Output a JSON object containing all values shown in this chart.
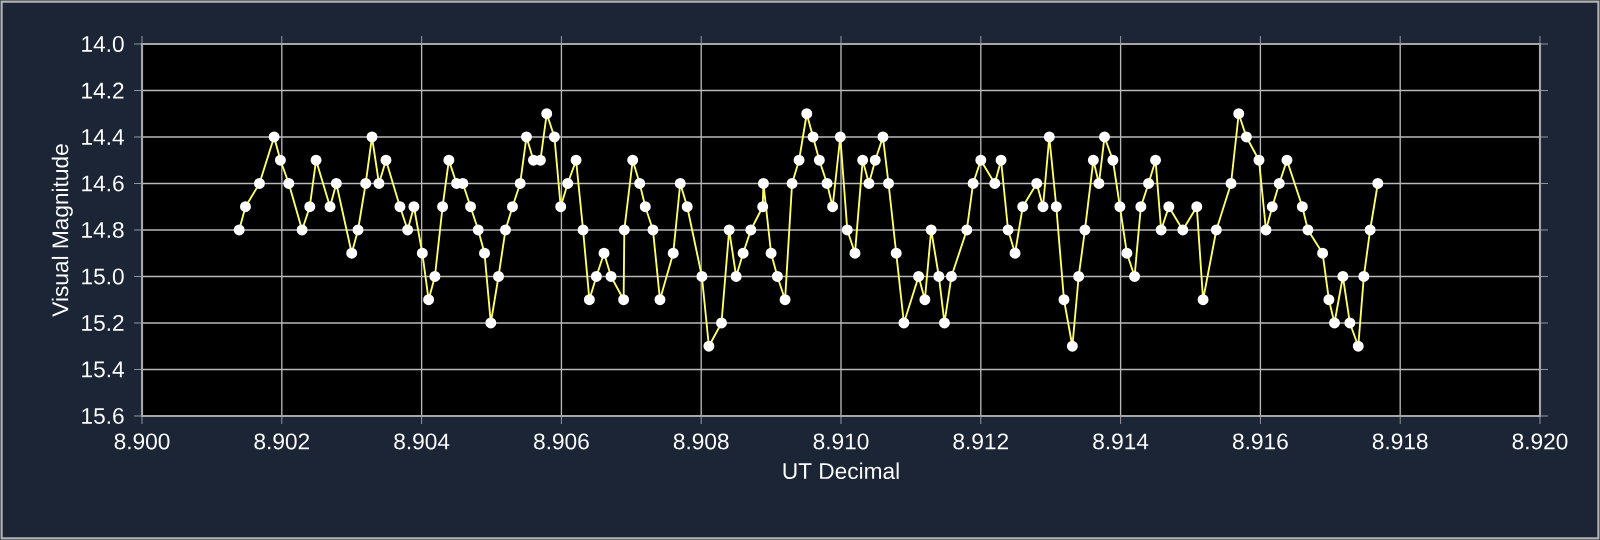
{
  "chart_data": {
    "type": "line",
    "xlabel": "UT Decimal",
    "ylabel": "Visual Magnitude",
    "x": [
      8.90139,
      8.90148,
      8.90168,
      8.90189,
      8.90198,
      8.9021,
      8.90229,
      8.9024,
      8.90249,
      8.90269,
      8.90278,
      8.903,
      8.90309,
      8.9032,
      8.90329,
      8.90339,
      8.90349,
      8.90369,
      8.9038,
      8.90389,
      8.90401,
      8.9041,
      8.90419,
      8.9043,
      8.90439,
      8.9045,
      8.90459,
      8.9047,
      8.90481,
      8.9049,
      8.90499,
      8.9051,
      8.9052,
      8.9053,
      8.90541,
      8.9055,
      8.9056,
      8.9057,
      8.90579,
      8.9059,
      8.90599,
      8.90609,
      8.90621,
      8.90631,
      8.9064,
      8.9065,
      8.90661,
      8.90671,
      8.90689,
      8.9069,
      8.90702,
      8.90712,
      8.9072,
      8.90731,
      8.90741,
      8.9076,
      8.9077,
      8.9078,
      8.90801,
      8.90811,
      8.90829,
      8.9084,
      8.9085,
      8.9086,
      8.90871,
      8.90888,
      8.90889,
      8.909,
      8.90909,
      8.9092,
      8.9093,
      8.9094,
      8.90951,
      8.9096,
      8.90969,
      8.9098,
      8.90988,
      8.90999,
      8.91009,
      8.9102,
      8.91031,
      8.9104,
      8.91049,
      8.9106,
      8.91068,
      8.91079,
      8.9109,
      8.91111,
      8.9112,
      8.91129,
      8.9114,
      8.91148,
      8.91158,
      8.9118,
      8.91189,
      8.912,
      8.9122,
      8.91229,
      8.91239,
      8.91249,
      8.9126,
      8.9128,
      8.91289,
      8.91298,
      8.91308,
      8.91319,
      8.91331,
      8.9134,
      8.91349,
      8.91361,
      8.91369,
      8.91377,
      8.91389,
      8.91399,
      8.91409,
      8.9142,
      8.91429,
      8.9144,
      8.9145,
      8.91458,
      8.91469,
      8.91489,
      8.91509,
      8.91518,
      8.91537,
      8.91558,
      8.91569,
      8.9158,
      8.91598,
      8.91608,
      8.91617,
      8.91627,
      8.91638,
      8.9166,
      8.91668,
      8.91689,
      8.91698,
      8.91706,
      8.91718,
      8.91728,
      8.9174,
      8.91748,
      8.91757,
      8.91768
    ],
    "values": [
      14.8,
      14.7,
      14.6,
      14.4,
      14.5,
      14.6,
      14.8,
      14.7,
      14.5,
      14.7,
      14.6,
      14.9,
      14.8,
      14.6,
      14.4,
      14.6,
      14.5,
      14.7,
      14.8,
      14.7,
      14.9,
      15.1,
      15.0,
      14.7,
      14.5,
      14.6,
      14.6,
      14.7,
      14.8,
      14.9,
      15.2,
      15.0,
      14.8,
      14.7,
      14.6,
      14.4,
      14.5,
      14.5,
      14.3,
      14.4,
      14.7,
      14.6,
      14.5,
      14.8,
      15.1,
      15.0,
      14.9,
      15.0,
      15.1,
      14.8,
      14.5,
      14.6,
      14.7,
      14.8,
      15.1,
      14.9,
      14.6,
      14.7,
      15.0,
      15.3,
      15.2,
      14.8,
      15.0,
      14.9,
      14.8,
      14.7,
      14.6,
      14.9,
      15.0,
      15.1,
      14.6,
      14.5,
      14.3,
      14.4,
      14.5,
      14.6,
      14.7,
      14.4,
      14.8,
      14.9,
      14.5,
      14.6,
      14.5,
      14.4,
      14.6,
      14.9,
      15.2,
      15.0,
      15.1,
      14.8,
      15.0,
      15.2,
      15.0,
      14.8,
      14.6,
      14.5,
      14.6,
      14.5,
      14.8,
      14.9,
      14.7,
      14.6,
      14.7,
      14.4,
      14.7,
      15.1,
      15.3,
      15.0,
      14.8,
      14.5,
      14.6,
      14.4,
      14.5,
      14.7,
      14.9,
      15.0,
      14.7,
      14.6,
      14.5,
      14.8,
      14.7,
      14.8,
      14.7,
      15.1,
      14.8,
      14.6,
      14.3,
      14.4,
      14.5,
      14.8,
      14.7,
      14.6,
      14.5,
      14.7,
      14.8,
      14.9,
      15.1,
      15.2,
      15.0,
      15.2,
      15.3,
      15.0,
      14.8,
      14.6
    ],
    "color": "#ffff66",
    "marker": "circle",
    "grid": true,
    "xlim": [
      8.9,
      8.92
    ],
    "ylim": [
      15.6,
      14.0
    ],
    "xticks": [
      {
        "value": 8.9,
        "label": "8.900"
      },
      {
        "value": 8.902,
        "label": "8.902"
      },
      {
        "value": 8.904,
        "label": "8.904"
      },
      {
        "value": 8.906,
        "label": "8.906"
      },
      {
        "value": 8.908,
        "label": "8.908"
      },
      {
        "value": 8.91,
        "label": "8.910"
      },
      {
        "value": 8.912,
        "label": "8.912"
      },
      {
        "value": 8.914,
        "label": "8.914"
      },
      {
        "value": 8.916,
        "label": "8.916"
      },
      {
        "value": 8.918,
        "label": "8.918"
      },
      {
        "value": 8.92,
        "label": "8.920"
      }
    ],
    "yticks": [
      {
        "value": 14.0,
        "label": "14.0"
      },
      14.2,
      14.4,
      14.6,
      14.8,
      {
        "value": 15.0,
        "label": "15.0"
      },
      15.2,
      15.4,
      15.6
    ]
  }
}
